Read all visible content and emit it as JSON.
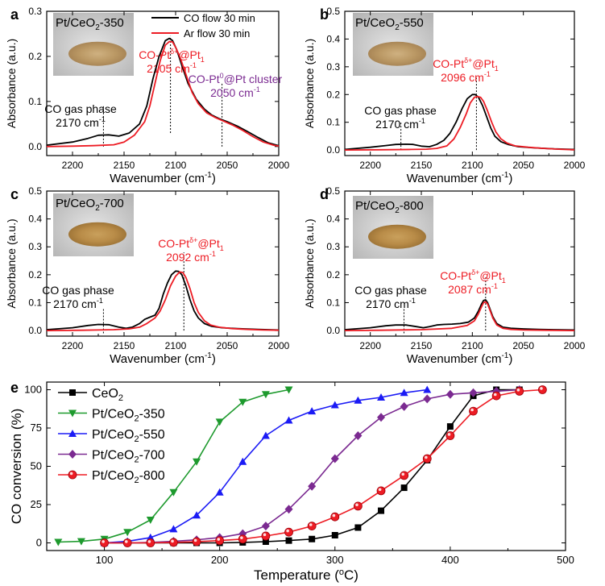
{
  "colors": {
    "black": "#000000",
    "red": "#ed1c24",
    "green": "#1e9a2e",
    "blue": "#1b1bf5",
    "purple": "#7b2a91"
  },
  "chart_data": [
    {
      "panel": "a",
      "type": "line",
      "sample": "Pt/CeO",
      "sample_sub": "2",
      "sample_suffix": "-350",
      "xlabel": "Wavenumber (cm",
      "xlabel_sup": "-1",
      "xlabel_end": ")",
      "ylabel": "Absorbance (a.u.)",
      "xlim": [
        2225,
        2000
      ],
      "ylim": [
        -0.02,
        0.3
      ],
      "xticks": [
        2200,
        2150,
        2100,
        2050,
        2000
      ],
      "yticks": [
        0.0,
        0.1,
        0.2,
        0.3
      ],
      "legend": [
        "CO flow 30 min",
        "Ar flow 30 min"
      ],
      "annotations": [
        {
          "name": "gas",
          "color": "black",
          "line1": "CO gas phase",
          "line2": "2170 cm",
          "sup2": "-1",
          "x": 2170,
          "yline": [
            0.0,
            0.09
          ]
        },
        {
          "name": "pt1",
          "color": "red",
          "line1": "CO-Pt",
          "sup1": "δ+",
          "tail1": "@Pt",
          "sub1": "1",
          "line2": "2105 cm",
          "sup2": "-1",
          "x": 2105,
          "yline": [
            0.03,
            0.245
          ]
        },
        {
          "name": "cluster",
          "color": "purple",
          "line1": "CO-Pt",
          "sup1": "0",
          "tail1": "@Pt cluster",
          "line2": "2050 cm",
          "sup2": "-1",
          "x": 2055,
          "yline": [
            0.0,
            0.14
          ]
        }
      ],
      "series": [
        {
          "name": "CO flow 30 min",
          "color": "black",
          "x": [
            2225,
            2200,
            2185,
            2175,
            2165,
            2155,
            2145,
            2135,
            2128,
            2122,
            2116,
            2110,
            2106,
            2103,
            2099,
            2094,
            2088,
            2080,
            2072,
            2065,
            2058,
            2050,
            2040,
            2030,
            2020,
            2010,
            2000
          ],
          "y": [
            0.003,
            0.01,
            0.018,
            0.025,
            0.026,
            0.023,
            0.03,
            0.05,
            0.09,
            0.15,
            0.2,
            0.235,
            0.24,
            0.235,
            0.215,
            0.18,
            0.14,
            0.105,
            0.083,
            0.07,
            0.062,
            0.055,
            0.045,
            0.033,
            0.02,
            0.008,
            0.002
          ]
        },
        {
          "name": "Ar flow 30 min",
          "color": "red",
          "x": [
            2225,
            2200,
            2180,
            2160,
            2150,
            2140,
            2130,
            2125,
            2120,
            2115,
            2110,
            2106,
            2103,
            2100,
            2096,
            2090,
            2084,
            2078,
            2070,
            2062,
            2055,
            2045,
            2035,
            2025,
            2015,
            2005,
            2000
          ],
          "y": [
            0.0,
            0.001,
            0.002,
            0.004,
            0.01,
            0.025,
            0.055,
            0.09,
            0.14,
            0.19,
            0.225,
            0.233,
            0.232,
            0.22,
            0.2,
            0.16,
            0.12,
            0.095,
            0.075,
            0.065,
            0.058,
            0.048,
            0.036,
            0.022,
            0.01,
            0.003,
            0.001
          ]
        }
      ]
    },
    {
      "panel": "b",
      "type": "line",
      "sample": "Pt/CeO",
      "sample_sub": "2",
      "sample_suffix": "-550",
      "xlabel": "Wavenumber (cm",
      "xlabel_sup": "-1",
      "xlabel_end": ")",
      "ylabel": "Absorbance (a.u.)",
      "xlim": [
        2225,
        2000
      ],
      "ylim": [
        -0.02,
        0.5
      ],
      "xticks": [
        2200,
        2150,
        2100,
        2050,
        2000
      ],
      "yticks": [
        0.0,
        0.1,
        0.2,
        0.3,
        0.4,
        0.5
      ],
      "annotations": [
        {
          "name": "gas",
          "color": "black",
          "line1": "CO gas phase",
          "line2": "2170 cm",
          "sup2": "-1",
          "x": 2170,
          "yline": [
            0.0,
            0.1
          ]
        },
        {
          "name": "pt1",
          "color": "red",
          "line1": "CO-Pt",
          "sup1": "δ+",
          "tail1": "@Pt",
          "sub1": "1",
          "line2": "2096 cm",
          "sup2": "-1",
          "x": 2096,
          "yline": [
            0.0,
            0.26
          ]
        }
      ],
      "series": [
        {
          "name": "CO flow 30 min",
          "color": "black",
          "x": [
            2225,
            2200,
            2185,
            2175,
            2165,
            2158,
            2150,
            2142,
            2135,
            2128,
            2122,
            2116,
            2110,
            2105,
            2100,
            2097,
            2094,
            2090,
            2086,
            2082,
            2078,
            2072,
            2065,
            2055,
            2040,
            2020,
            2000
          ],
          "y": [
            0.002,
            0.01,
            0.016,
            0.02,
            0.021,
            0.02,
            0.014,
            0.012,
            0.02,
            0.035,
            0.06,
            0.1,
            0.15,
            0.185,
            0.2,
            0.2,
            0.19,
            0.16,
            0.12,
            0.08,
            0.05,
            0.03,
            0.02,
            0.012,
            0.008,
            0.004,
            0.002
          ]
        },
        {
          "name": "Ar flow 30 min",
          "color": "red",
          "x": [
            2225,
            2190,
            2160,
            2145,
            2135,
            2125,
            2118,
            2112,
            2106,
            2102,
            2098,
            2095,
            2092,
            2089,
            2085,
            2081,
            2077,
            2072,
            2066,
            2058,
            2045,
            2030,
            2015,
            2000
          ],
          "y": [
            0.0,
            0.001,
            0.002,
            0.003,
            0.006,
            0.015,
            0.04,
            0.08,
            0.13,
            0.17,
            0.19,
            0.193,
            0.19,
            0.175,
            0.14,
            0.1,
            0.065,
            0.04,
            0.025,
            0.015,
            0.01,
            0.006,
            0.003,
            0.001
          ]
        }
      ]
    },
    {
      "panel": "c",
      "type": "line",
      "sample": "Pt/CeO",
      "sample_sub": "2",
      "sample_suffix": "-700",
      "xlabel": "Wavenumber (cm",
      "xlabel_sup": "-1",
      "xlabel_end": ")",
      "ylabel": "Absorbance (a.u.)",
      "xlim": [
        2225,
        2000
      ],
      "ylim": [
        -0.02,
        0.5
      ],
      "xticks": [
        2200,
        2150,
        2100,
        2050,
        2000
      ],
      "yticks": [
        0.0,
        0.1,
        0.2,
        0.3,
        0.4,
        0.5
      ],
      "annotations": [
        {
          "name": "gas",
          "color": "black",
          "line1": "CO gas phase",
          "line2": "2170 cm",
          "sup2": "-1",
          "x": 2170,
          "yline": [
            -0.01,
            0.08
          ]
        },
        {
          "name": "pt1",
          "color": "red",
          "line1": "CO-Pt",
          "sup1": "δ+",
          "tail1": "@Pt",
          "sub1": "1",
          "line2": "2092 cm",
          "sup2": "-1",
          "x": 2092,
          "yline": [
            0.0,
            0.28
          ]
        }
      ],
      "series": [
        {
          "name": "CO flow 30 min",
          "color": "black",
          "x": [
            2225,
            2200,
            2185,
            2175,
            2165,
            2155,
            2148,
            2142,
            2135,
            2130,
            2125,
            2120,
            2116,
            2112,
            2108,
            2104,
            2100,
            2097,
            2094,
            2090,
            2086,
            2082,
            2078,
            2072,
            2065,
            2055,
            2040,
            2020,
            2000
          ],
          "y": [
            0.003,
            0.01,
            0.018,
            0.022,
            0.021,
            0.012,
            0.008,
            0.012,
            0.025,
            0.04,
            0.048,
            0.055,
            0.08,
            0.13,
            0.17,
            0.2,
            0.213,
            0.212,
            0.2,
            0.16,
            0.11,
            0.07,
            0.045,
            0.025,
            0.015,
            0.01,
            0.007,
            0.004,
            0.002
          ]
        },
        {
          "name": "Ar flow 30 min",
          "color": "red",
          "x": [
            2225,
            2190,
            2160,
            2145,
            2135,
            2128,
            2120,
            2115,
            2110,
            2105,
            2100,
            2096,
            2093,
            2090,
            2086,
            2082,
            2078,
            2072,
            2066,
            2058,
            2045,
            2030,
            2015,
            2000
          ],
          "y": [
            0.0,
            0.001,
            0.003,
            0.006,
            0.012,
            0.025,
            0.045,
            0.07,
            0.11,
            0.16,
            0.195,
            0.21,
            0.208,
            0.19,
            0.15,
            0.1,
            0.065,
            0.035,
            0.02,
            0.012,
            0.007,
            0.004,
            0.002,
            0.001
          ]
        }
      ]
    },
    {
      "panel": "d",
      "type": "line",
      "sample": "Pt/CeO",
      "sample_sub": "2",
      "sample_suffix": "-800",
      "xlabel": "Wavenumber (cm",
      "xlabel_sup": "-1",
      "xlabel_end": ")",
      "ylabel": "Absorbance (a.u.)",
      "xlim": [
        2225,
        2000
      ],
      "ylim": [
        -0.02,
        0.5
      ],
      "xticks": [
        2200,
        2150,
        2100,
        2050,
        2000
      ],
      "yticks": [
        0.0,
        0.1,
        0.2,
        0.3,
        0.4,
        0.5
      ],
      "annotations": [
        {
          "name": "gas",
          "color": "black",
          "line1": "CO gas phase",
          "line2": "2170 cm",
          "sup2": "-1",
          "x": 2167,
          "yline": [
            -0.01,
            0.08
          ]
        },
        {
          "name": "pt1",
          "color": "red",
          "line1": "CO-Pt",
          "sup1": "δ+",
          "tail1": "@Pt",
          "sub1": "1",
          "line2": "2087 cm",
          "sup2": "-1",
          "x": 2087,
          "yline": [
            0.0,
            0.19
          ]
        }
      ],
      "series": [
        {
          "name": "CO flow 30 min",
          "color": "black",
          "x": [
            2225,
            2200,
            2185,
            2175,
            2165,
            2155,
            2148,
            2142,
            2135,
            2128,
            2120,
            2112,
            2104,
            2098,
            2094,
            2091,
            2089,
            2087,
            2085,
            2083,
            2080,
            2076,
            2070,
            2062,
            2050,
            2035,
            2020,
            2000
          ],
          "y": [
            0.003,
            0.01,
            0.017,
            0.02,
            0.02,
            0.014,
            0.01,
            0.014,
            0.02,
            0.022,
            0.023,
            0.025,
            0.03,
            0.045,
            0.07,
            0.095,
            0.108,
            0.11,
            0.1,
            0.08,
            0.05,
            0.025,
            0.012,
            0.008,
            0.006,
            0.004,
            0.003,
            0.002
          ]
        },
        {
          "name": "Ar flow 30 min",
          "color": "red",
          "x": [
            2225,
            2190,
            2150,
            2120,
            2105,
            2098,
            2094,
            2091,
            2089,
            2087,
            2085,
            2083,
            2080,
            2076,
            2070,
            2062,
            2050,
            2030,
            2000
          ],
          "y": [
            0.0,
            0.001,
            0.003,
            0.008,
            0.018,
            0.035,
            0.06,
            0.085,
            0.1,
            0.103,
            0.095,
            0.075,
            0.045,
            0.02,
            0.008,
            0.004,
            0.002,
            0.001,
            0.0
          ]
        }
      ]
    },
    {
      "panel": "e",
      "type": "line",
      "xlabel": "Temperature (",
      "xlabel_sup": "o",
      "xlabel_end": "C)",
      "ylabel": "CO conversion (%)",
      "xlim": [
        50,
        500
      ],
      "ylim": [
        -5,
        105
      ],
      "xticks": [
        100,
        200,
        300,
        400,
        500
      ],
      "yticks": [
        0,
        25,
        50,
        75,
        100
      ],
      "series": [
        {
          "name": "CeO",
          "name_sub": "2",
          "name_suffix": "",
          "color": "black",
          "marker": "square",
          "x": [
            100,
            120,
            140,
            160,
            180,
            200,
            220,
            240,
            260,
            280,
            300,
            320,
            340,
            360,
            380,
            400,
            420,
            440,
            460
          ],
          "y": [
            0,
            0,
            0,
            0,
            0,
            0,
            0.3,
            0.8,
            1.5,
            2.5,
            5,
            10,
            21,
            36,
            54,
            76,
            96,
            100,
            100
          ]
        },
        {
          "name": "Pt/CeO",
          "name_sub": "2",
          "name_suffix": "-350",
          "color": "green",
          "marker": "triangle-down",
          "x": [
            60,
            80,
            100,
            120,
            140,
            160,
            180,
            200,
            220,
            240,
            260
          ],
          "y": [
            0.5,
            1,
            2.5,
            7,
            15,
            33,
            53,
            79,
            92,
            97,
            100
          ]
        },
        {
          "name": "Pt/CeO",
          "name_sub": "2",
          "name_suffix": "-550",
          "color": "blue",
          "marker": "triangle-up",
          "x": [
            100,
            120,
            140,
            160,
            180,
            200,
            220,
            240,
            260,
            280,
            300,
            320,
            340,
            360,
            380
          ],
          "y": [
            0,
            1,
            3.5,
            9,
            18,
            33,
            53,
            70,
            80,
            86,
            90,
            93,
            95,
            98,
            100
          ]
        },
        {
          "name": "Pt/CeO",
          "name_sub": "2",
          "name_suffix": "-700",
          "color": "purple",
          "marker": "diamond",
          "x": [
            100,
            120,
            140,
            160,
            180,
            200,
            220,
            240,
            260,
            280,
            300,
            320,
            340,
            360,
            380,
            400,
            420,
            440,
            460
          ],
          "y": [
            0,
            0,
            0.3,
            1,
            2,
            3.5,
            6,
            11,
            22,
            37,
            55,
            70,
            82,
            89,
            94,
            97,
            98,
            99,
            100
          ]
        },
        {
          "name": "Pt/CeO",
          "name_sub": "2",
          "name_suffix": "-800",
          "color": "red",
          "marker": "circle",
          "x": [
            100,
            120,
            140,
            160,
            180,
            200,
            220,
            240,
            260,
            280,
            300,
            320,
            340,
            360,
            380,
            400,
            420,
            440,
            460,
            480
          ],
          "y": [
            0,
            0,
            0,
            0.3,
            0.8,
            1.5,
            2.5,
            4.5,
            7,
            11,
            17,
            24,
            34,
            44,
            55,
            70,
            86,
            96,
            99,
            100
          ]
        }
      ]
    }
  ]
}
